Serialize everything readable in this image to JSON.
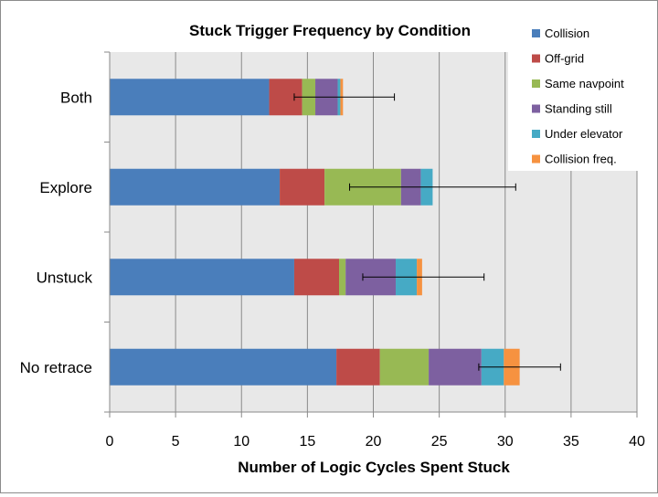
{
  "chart_data": {
    "type": "bar",
    "orientation": "horizontal",
    "stacked": true,
    "title": "Stuck Trigger Frequency by Condition",
    "xlabel": "Number of Logic Cycles Spent Stuck",
    "ylabel": "",
    "xlim": [
      0,
      40
    ],
    "xticks": [
      0,
      5,
      10,
      15,
      20,
      25,
      30,
      35,
      40
    ],
    "grid": "vertical",
    "legend_position": "top-right",
    "categories": [
      "Both",
      "Explore",
      "Unstuck",
      "No retrace"
    ],
    "series": [
      {
        "name": "Collision",
        "color": "#4a7ebb",
        "values": [
          12.1,
          12.9,
          14.0,
          17.2
        ]
      },
      {
        "name": "Off-grid",
        "color": "#be4b48",
        "values": [
          2.5,
          3.4,
          3.4,
          3.3
        ]
      },
      {
        "name": "Same navpoint",
        "color": "#98b954",
        "values": [
          1.0,
          5.8,
          0.5,
          3.7
        ]
      },
      {
        "name": "Standing still",
        "color": "#7d60a0",
        "values": [
          1.7,
          1.5,
          3.8,
          4.0
        ]
      },
      {
        "name": "Under elevator",
        "color": "#46aac5",
        "values": [
          0.2,
          0.9,
          1.6,
          1.7
        ]
      },
      {
        "name": "Collision freq.",
        "color": "#f69240",
        "values": [
          0.2,
          0.0,
          0.4,
          1.2
        ]
      }
    ],
    "error_bars": [
      {
        "category": "Both",
        "center": 17.8,
        "low": 14.0,
        "high": 21.6
      },
      {
        "category": "Explore",
        "center": 24.5,
        "low": 18.2,
        "high": 30.8
      },
      {
        "category": "Unstuck",
        "center": 23.8,
        "low": 19.2,
        "high": 28.4
      },
      {
        "category": "No retrace",
        "center": 31.1,
        "low": 28.0,
        "high": 34.2
      }
    ]
  }
}
